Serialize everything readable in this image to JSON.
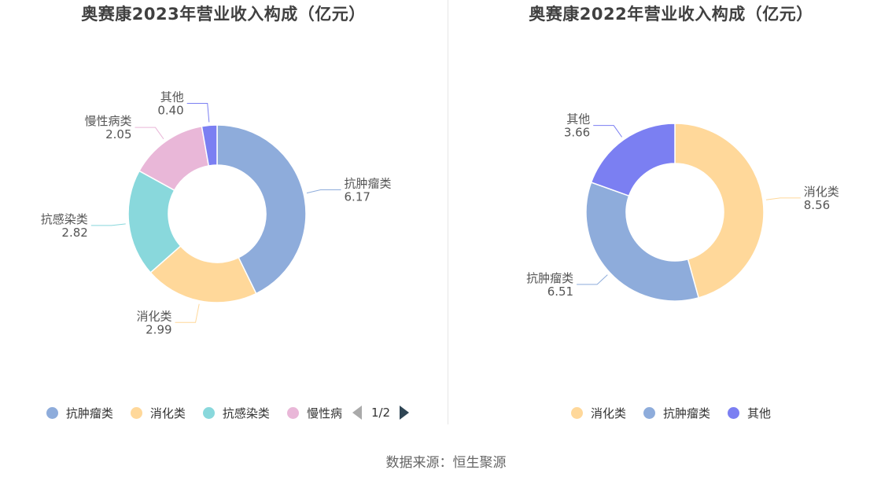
{
  "charts": [
    {
      "title": "奥赛康2023年营业收入构成（亿元）",
      "legend_visible": [
        "抗肿瘤类",
        "消化类",
        "抗感染类",
        "慢性病"
      ],
      "legend_colors": [
        "#8eacdb",
        "#ffd89a",
        "#89d8dc",
        "#e9b7d8"
      ],
      "pager": "1/2",
      "chart_data": {
        "type": "pie",
        "title": "奥赛康2023年营业收入构成（亿元）",
        "labels": [
          "抗肿瘤类",
          "消化类",
          "抗感染类",
          "慢性病类",
          "其他"
        ],
        "values": [
          6.17,
          2.99,
          2.82,
          2.05,
          0.4
        ],
        "value_labels": [
          "6.17",
          "2.99",
          "2.82",
          "2.05",
          "0.40"
        ],
        "colors": [
          "#8eacdb",
          "#ffd89a",
          "#89d8dc",
          "#e9b7d8",
          "#7b7ff2"
        ],
        "unit": "亿元",
        "legend_position": "bottom"
      }
    },
    {
      "title": "奥赛康2022年营业收入构成（亿元）",
      "legend_visible": [
        "消化类",
        "抗肿瘤类",
        "其他"
      ],
      "legend_colors": [
        "#ffd89a",
        "#8eacdb",
        "#7b7ff2"
      ],
      "pager": "",
      "chart_data": {
        "type": "pie",
        "title": "奥赛康2022年营业收入构成（亿元）",
        "labels": [
          "消化类",
          "抗肿瘤类",
          "其他"
        ],
        "values": [
          8.56,
          6.51,
          3.66
        ],
        "value_labels": [
          "8.56",
          "6.51",
          "3.66"
        ],
        "colors": [
          "#ffd89a",
          "#8eacdb",
          "#7b7ff2"
        ],
        "unit": "亿元",
        "legend_position": "bottom"
      }
    }
  ],
  "source": "数据来源：恒生聚源"
}
